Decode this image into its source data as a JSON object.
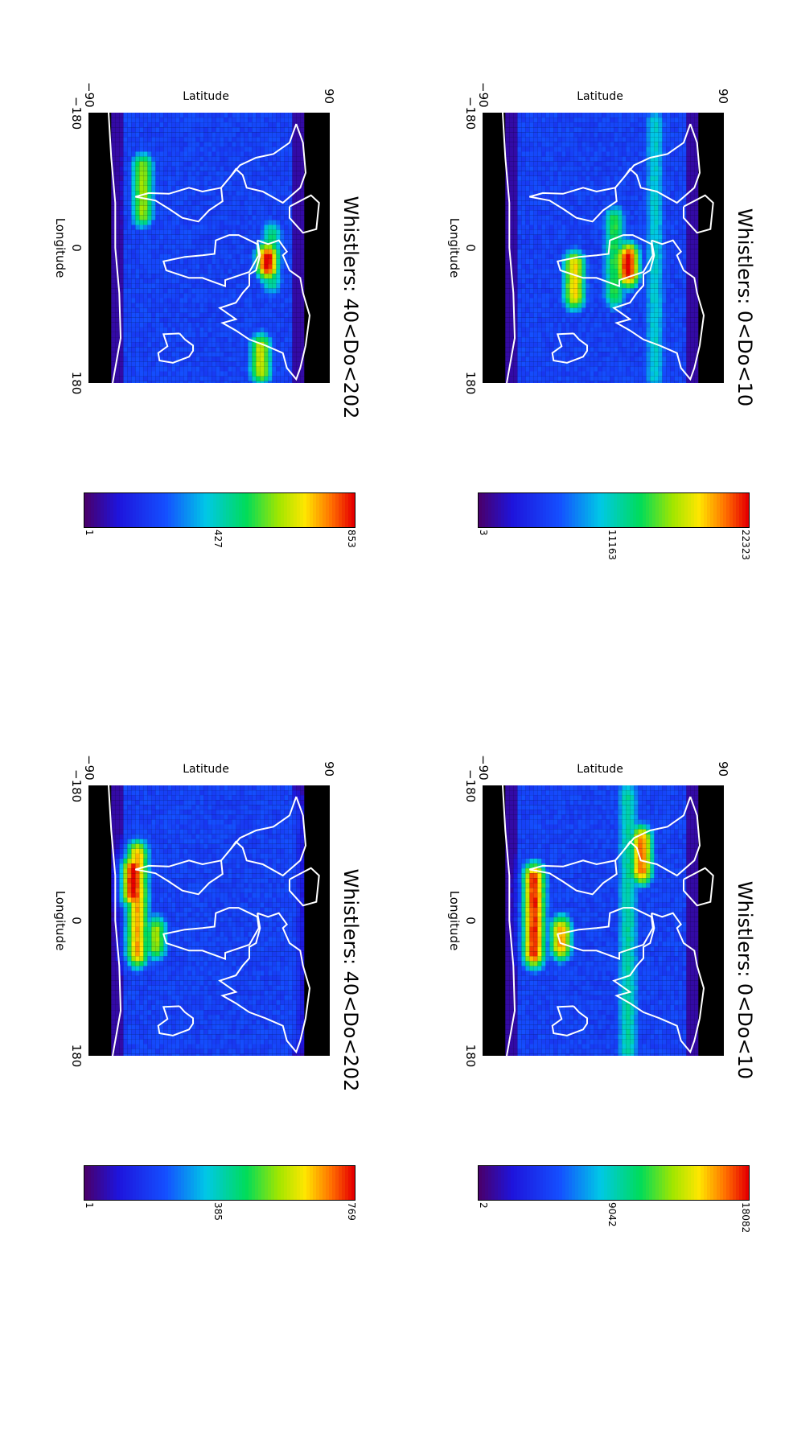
{
  "figure": {
    "panels": [
      {
        "id": "top-left",
        "title": "Whistlers:  40<Do<202",
        "ylabel": "Latitude",
        "xlabel": "Longitude",
        "yticks": [
          "90",
          "−90"
        ],
        "xticks": [
          "−180",
          "0",
          "180"
        ],
        "colorbar_ticks": [
          "1",
          "385",
          "769"
        ],
        "colorbar_max": 769,
        "bands": [
          {
            "lat": 62,
            "lon": -150,
            "lon2": 150,
            "level": 0.25
          },
          {
            "lat": -52,
            "lon": -90,
            "lon2": 40,
            "level": 0.85
          },
          {
            "lat": -55,
            "lon": -70,
            "lon2": -40,
            "level": 1.0
          },
          {
            "lat": -38,
            "lon": 10,
            "lon2": 30,
            "level": 0.7
          }
        ]
      },
      {
        "id": "top-right",
        "title": "Whistlers:  40<Do<202",
        "ylabel": "Latitude",
        "xlabel": "Longitude",
        "yticks": [
          "90",
          "−90"
        ],
        "xticks": [
          "−180",
          "0",
          "180"
        ],
        "colorbar_ticks": [
          "1",
          "427",
          "853"
        ],
        "colorbar_max": 853,
        "bands": [
          {
            "lat": 48,
            "lon": -20,
            "lon2": 40,
            "level": 0.55
          },
          {
            "lat": 45,
            "lon": 10,
            "lon2": 20,
            "level": 1.0
          },
          {
            "lat": 40,
            "lon": 130,
            "lon2": 160,
            "level": 0.75
          },
          {
            "lat": -48,
            "lon": -110,
            "lon2": -50,
            "level": 0.7
          }
        ]
      },
      {
        "id": "bottom-left",
        "title": "Whistlers:  0<Do<10",
        "ylabel": "Latitude",
        "xlabel": "Longitude",
        "yticks": [
          "90",
          "−90"
        ],
        "xticks": [
          "−180",
          "0",
          "180"
        ],
        "colorbar_ticks": [
          "2",
          "9042",
          "18082"
        ],
        "colorbar_max": 18082,
        "bands": [
          {
            "lat": 20,
            "lon": -170,
            "lon2": 170,
            "level": 0.5
          },
          {
            "lat": 30,
            "lon": -110,
            "lon2": -70,
            "level": 0.9
          },
          {
            "lat": -50,
            "lon": -60,
            "lon2": 40,
            "level": 0.95
          },
          {
            "lat": -30,
            "lon": 10,
            "lon2": 30,
            "level": 0.85
          }
        ]
      },
      {
        "id": "bottom-right",
        "title": "Whistlers:  0<Do<10",
        "ylabel": "Latitude",
        "xlabel": "Longitude",
        "yticks": [
          "90",
          "−90"
        ],
        "xticks": [
          "−180",
          "0",
          "180"
        ],
        "colorbar_ticks": [
          "3",
          "11163",
          "22323"
        ],
        "colorbar_max": 22323,
        "bands": [
          {
            "lat": 10,
            "lon": -40,
            "lon2": 60,
            "level": 0.6
          },
          {
            "lat": 20,
            "lon": 10,
            "lon2": 30,
            "level": 1.0
          },
          {
            "lat": -20,
            "lon": 20,
            "lon2": 60,
            "level": 0.8
          },
          {
            "lat": 40,
            "lon": -170,
            "lon2": 170,
            "level": 0.45
          }
        ]
      }
    ]
  }
}
